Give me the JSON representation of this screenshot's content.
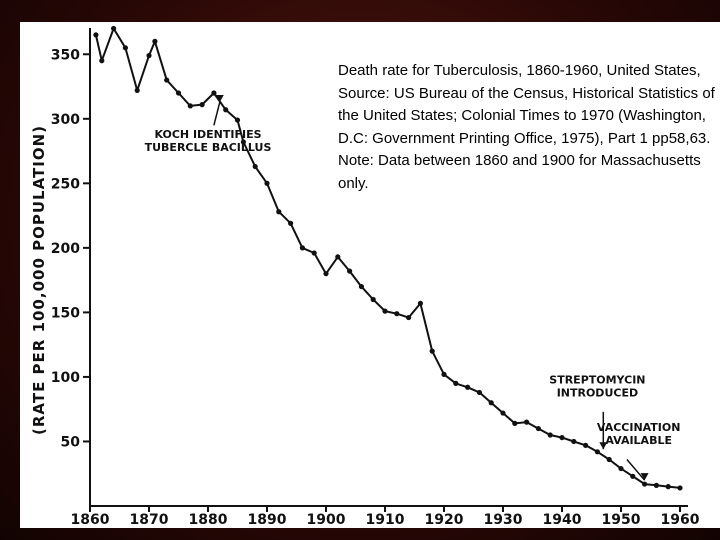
{
  "caption": "Death rate for Tuberculosis, 1860-1960, United States, Source: US Bureau of the Census, Historical Statistics of the United States; Colonial Times to 1970 (Washington, D.C: Government Printing Office, 1975), Part 1 pp58,63.  Note: Data between 1860 and 1900 for Massachusetts only.",
  "chart_data": {
    "type": "line",
    "title": "",
    "xlabel": "",
    "ylabel": "(RATE PER 100,000 POPULATION)",
    "xlim": [
      1860,
      1960
    ],
    "ylim": [
      0,
      375
    ],
    "x_ticks": [
      "1860",
      "1870",
      "1880",
      "1890",
      "1900",
      "1910",
      "1920",
      "1930",
      "1940",
      "1950",
      "1960"
    ],
    "y_ticks": [
      "50",
      "100",
      "150",
      "200",
      "250",
      "300",
      "350"
    ],
    "grid": false,
    "series": [
      {
        "color": "#111111",
        "points": [
          [
            1861,
            365
          ],
          [
            1862,
            345
          ],
          [
            1864,
            370
          ],
          [
            1866,
            355
          ],
          [
            1868,
            322
          ],
          [
            1870,
            349
          ],
          [
            1871,
            360
          ],
          [
            1873,
            330
          ],
          [
            1875,
            320
          ],
          [
            1877,
            310
          ],
          [
            1879,
            311
          ],
          [
            1881,
            320
          ],
          [
            1883,
            307
          ],
          [
            1885,
            299
          ],
          [
            1886,
            282
          ],
          [
            1888,
            263
          ],
          [
            1890,
            250
          ],
          [
            1892,
            228
          ],
          [
            1894,
            219
          ],
          [
            1896,
            200
          ],
          [
            1898,
            196
          ],
          [
            1900,
            180
          ],
          [
            1902,
            193
          ],
          [
            1904,
            182
          ],
          [
            1906,
            170
          ],
          [
            1908,
            160
          ],
          [
            1910,
            151
          ],
          [
            1912,
            149
          ],
          [
            1914,
            146
          ],
          [
            1916,
            157
          ],
          [
            1918,
            120
          ],
          [
            1920,
            102
          ],
          [
            1922,
            95
          ],
          [
            1924,
            92
          ],
          [
            1926,
            88
          ],
          [
            1928,
            80
          ],
          [
            1930,
            72
          ],
          [
            1932,
            64
          ],
          [
            1934,
            65
          ],
          [
            1936,
            60
          ],
          [
            1938,
            55
          ],
          [
            1940,
            53
          ],
          [
            1942,
            50
          ],
          [
            1944,
            47
          ],
          [
            1946,
            42
          ],
          [
            1948,
            36
          ],
          [
            1950,
            29
          ],
          [
            1952,
            23
          ],
          [
            1954,
            17
          ],
          [
            1956,
            16
          ],
          [
            1958,
            15
          ],
          [
            1960,
            14
          ]
        ]
      }
    ],
    "annotations": [
      {
        "lines": [
          "KOCH IDENTIFIES",
          "TUBERCLE BACILLUS"
        ],
        "x": 1882,
        "y": 308
      },
      {
        "lines": [
          "STREPTOMYCIN",
          "INTRODUCED"
        ],
        "x": 1947,
        "y": 42
      },
      {
        "lines": [
          "VACCINATION",
          "AVAILABLE"
        ],
        "x": 1955,
        "y": 17
      }
    ]
  }
}
